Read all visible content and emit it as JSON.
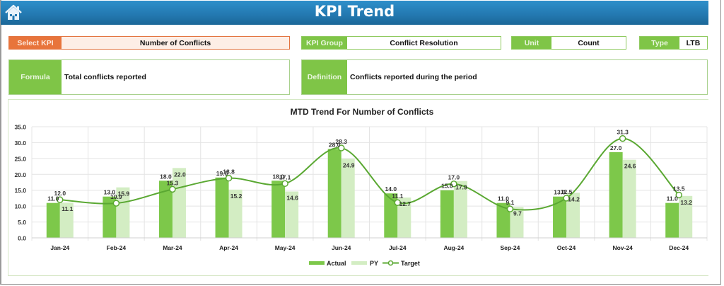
{
  "header": {
    "title": "KPI Trend",
    "home_icon": "home-icon"
  },
  "selectors": {
    "select_kpi": {
      "label": "Select KPI",
      "value": "Number of Conflicts"
    },
    "kpi_group": {
      "label": "KPI Group",
      "value": "Conflict Resolution"
    },
    "unit": {
      "label": "Unit",
      "value": "Count"
    },
    "type": {
      "label": "Type",
      "value": "LTB"
    }
  },
  "info": {
    "formula": {
      "label": "Formula",
      "value": "Total conflicts reported"
    },
    "definition": {
      "label": "Definition",
      "value": "Conflicts reported during the period"
    }
  },
  "colors": {
    "header": "#2378b0",
    "actual": "#7dc84a",
    "py": "#d3edc3",
    "target": "#5aa832",
    "select_kpi": "#e8743b",
    "label_green": "#7fc547"
  },
  "chart_data": {
    "type": "bar",
    "title": "MTD Trend For Number of Conflicts",
    "xlabel": "",
    "ylabel": "",
    "ylim": [
      0,
      35
    ],
    "yticks": [
      "0.0",
      "5.0",
      "10.0",
      "15.0",
      "20.0",
      "25.0",
      "30.0",
      "35.0"
    ],
    "grid": true,
    "legend_position": "bottom",
    "categories": [
      "Jan-24",
      "Feb-24",
      "Mar-24",
      "Apr-24",
      "May-24",
      "Jun-24",
      "Jul-24",
      "Aug-24",
      "Sep-24",
      "Oct-24",
      "Nov-24",
      "Dec-24"
    ],
    "series": [
      {
        "name": "Actual",
        "type": "bar",
        "values": [
          11.0,
          13.0,
          18.0,
          19.0,
          18.0,
          28.0,
          14.0,
          15.0,
          11.0,
          13.0,
          27.0,
          11.0
        ]
      },
      {
        "name": "PY",
        "type": "bar",
        "values": [
          11.1,
          15.9,
          22.0,
          15.2,
          14.6,
          24.9,
          12.7,
          17.9,
          9.7,
          14.2,
          24.6,
          13.2
        ]
      },
      {
        "name": "Target",
        "type": "line",
        "values": [
          12.0,
          10.9,
          15.3,
          18.8,
          17.1,
          28.3,
          11.1,
          17.0,
          9.1,
          12.5,
          31.3,
          13.5
        ]
      }
    ]
  }
}
